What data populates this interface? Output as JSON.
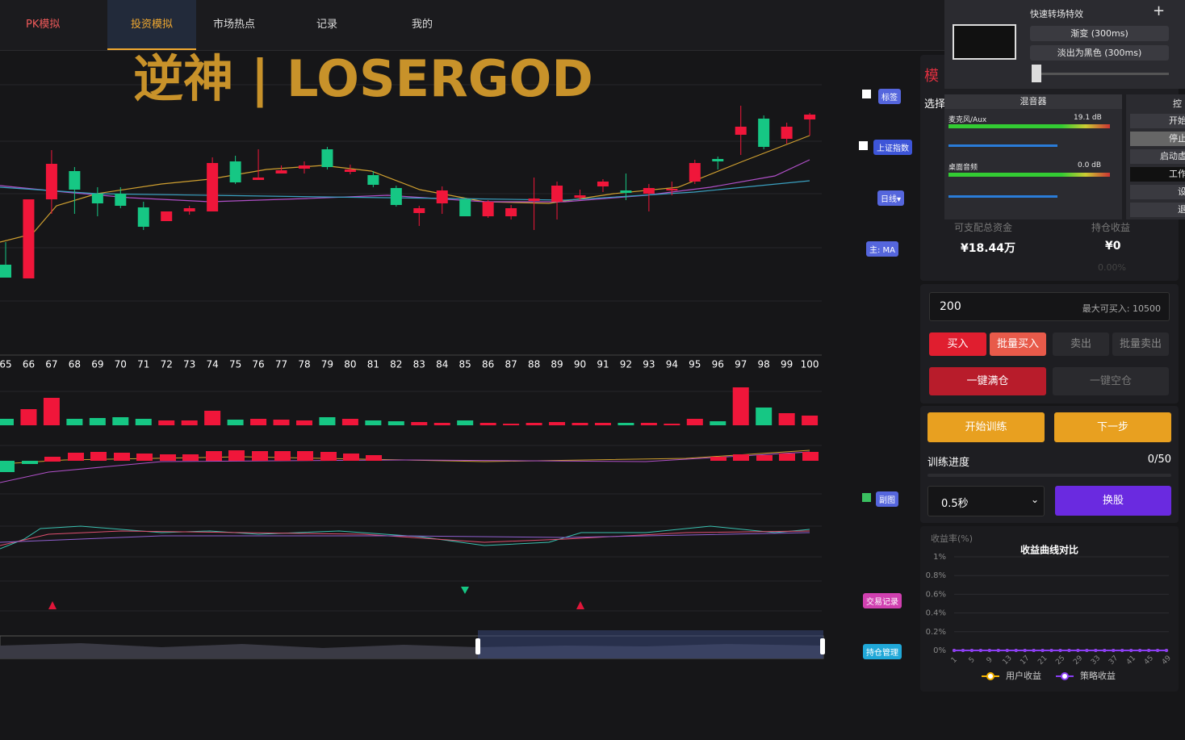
{
  "nav": {
    "items": [
      "PK模拟",
      "投资模拟",
      "市场热点",
      "记录",
      "我的"
    ]
  },
  "watermark": "逆神 | LOSERGOD",
  "side_buttons": [
    "标签",
    "上证指数",
    "日线▾",
    "主: MA",
    "副图",
    "交易记录",
    "持仓管理"
  ],
  "obs": {
    "transition_title": "快速转场特效",
    "fade": "渐变 (300ms)",
    "fade_black": "淡出为黑色 (300ms)",
    "mixer": "混音器",
    "mic": "麦克风/Aux",
    "mic_db": "19.1 dB",
    "desktop": "桌面音频",
    "desktop_db": "0.0 dB",
    "controls": [
      "控",
      "开始",
      "停止",
      "启动虚",
      "工作",
      "设",
      "退"
    ]
  },
  "panel": {
    "title": "模",
    "select": "选择",
    "funds_label": "可支配总资金",
    "funds": "¥18.44万",
    "profit_label": "持仓收益",
    "profit": "¥0",
    "profit_pct": "0.00%",
    "qty": "200",
    "max_buy": "最大可买入: 10500",
    "buy": "买入",
    "batch_buy": "批量买入",
    "sell": "卖出",
    "batch_sell": "批量卖出",
    "full": "一键满仓",
    "empty": "一键空仓",
    "start": "开始训练",
    "next": "下一步",
    "progress_label": "训练进度",
    "progress": "0/50",
    "speed": "0.5秒",
    "switch": "换股"
  },
  "chart_data": [
    {
      "type": "candlestick",
      "categories": [
        "65",
        "66",
        "67",
        "68",
        "69",
        "70",
        "71",
        "72",
        "73",
        "74",
        "75",
        "76",
        "77",
        "78",
        "79",
        "80",
        "81",
        "82",
        "83",
        "84",
        "85",
        "86",
        "87",
        "88",
        "89",
        "90",
        "91",
        "92",
        "93",
        "94",
        "95",
        "96",
        "97",
        "98",
        "99",
        "100"
      ],
      "open": [
        7.2,
        5.5,
        15.3,
        18.8,
        16,
        16,
        14.3,
        12.6,
        13.8,
        13.8,
        20,
        17.7,
        18.5,
        19.1,
        21.5,
        18.7,
        18.3,
        16.7,
        13.6,
        14.8,
        15.3,
        13.2,
        13.2,
        15.1,
        15,
        15.5,
        16.9,
        16.4,
        16,
        16.4,
        17.5,
        20.3,
        23.3,
        25.3,
        22.8,
        25.2
      ],
      "close": [
        5.6,
        15.3,
        19.7,
        16.5,
        14.8,
        14.5,
        11.9,
        13.8,
        14.2,
        19.8,
        17.4,
        18,
        18.9,
        19.5,
        19.3,
        19,
        17.1,
        14.6,
        14.2,
        16.4,
        13.2,
        15,
        14.2,
        15.4,
        17,
        15.8,
        17.5,
        16.1,
        16.7,
        16.6,
        19.8,
        20,
        24.3,
        21.8,
        24.3,
        25.8
      ],
      "high": [
        10,
        15.3,
        21.4,
        19.3,
        16.8,
        16.8,
        15,
        13.8,
        14.5,
        20.5,
        20.7,
        21.5,
        19.5,
        20,
        21.8,
        19.6,
        18.8,
        17,
        14.5,
        16.9,
        15.5,
        15.2,
        14.6,
        18,
        17.5,
        16.5,
        17.8,
        18.5,
        17.2,
        17.5,
        20.2,
        20.6,
        26.9,
        25.7,
        24.8,
        26
      ],
      "low": [
        5.6,
        5.5,
        13.5,
        13.5,
        13.2,
        14.2,
        11.5,
        12.6,
        13.4,
        13.8,
        17.2,
        17.7,
        18.5,
        18.5,
        19,
        18.4,
        16.8,
        14.4,
        12,
        13.5,
        13.2,
        13,
        12.8,
        11.5,
        12.8,
        15.2,
        16.2,
        15.2,
        13.8,
        15.8,
        17.2,
        19,
        20.8,
        21.5,
        22.2,
        23.2
      ],
      "volume": [
        8,
        20,
        34,
        8,
        9,
        10,
        8,
        6,
        6,
        18,
        7,
        8,
        7,
        6,
        10,
        8,
        6,
        5,
        4,
        3,
        6,
        3,
        2,
        3,
        4,
        3,
        3,
        3,
        3,
        2,
        8,
        5,
        47,
        22,
        15,
        12
      ],
      "up_color": "#f0163a",
      "down_color": "#16c784",
      "ylim": [
        0,
        34
      ],
      "volume_ylim": [
        0,
        60
      ]
    },
    {
      "type": "line",
      "title": "收益曲线对比",
      "y_label": "收益率(%)",
      "x": [
        1,
        3,
        5,
        7,
        9,
        11,
        13,
        15,
        17,
        19,
        21,
        23,
        25,
        27,
        29,
        31,
        33,
        35,
        37,
        39,
        41,
        43,
        45,
        47,
        49
      ],
      "xlim": [
        1,
        49
      ],
      "xticks": [
        1,
        5,
        9,
        13,
        17,
        21,
        25,
        29,
        33,
        37,
        41,
        45,
        49
      ],
      "ylim": [
        0,
        1
      ],
      "yticks": [
        {
          "value": 0,
          "label": "0%"
        },
        {
          "value": 0.2,
          "label": "0.2%"
        },
        {
          "value": 0.4,
          "label": "0.4%"
        },
        {
          "value": 0.6,
          "label": "0.6%"
        },
        {
          "value": 0.8,
          "label": "0.8%"
        },
        {
          "value": 1,
          "label": "1%"
        }
      ],
      "series": [
        {
          "name": "用户收益",
          "color": "#f5b400",
          "values": [
            0,
            0,
            0,
            0,
            0,
            0,
            0,
            0,
            0,
            0,
            0,
            0,
            0,
            0,
            0,
            0,
            0,
            0,
            0,
            0,
            0,
            0,
            0,
            0,
            0
          ]
        },
        {
          "name": "策略收益",
          "color": "#8a3df5",
          "values": [
            0,
            0,
            0,
            0,
            0,
            0,
            0,
            0,
            0,
            0,
            0,
            0,
            0,
            0,
            0,
            0,
            0,
            0,
            0,
            0,
            0,
            0,
            0,
            0,
            0
          ]
        }
      ]
    }
  ]
}
